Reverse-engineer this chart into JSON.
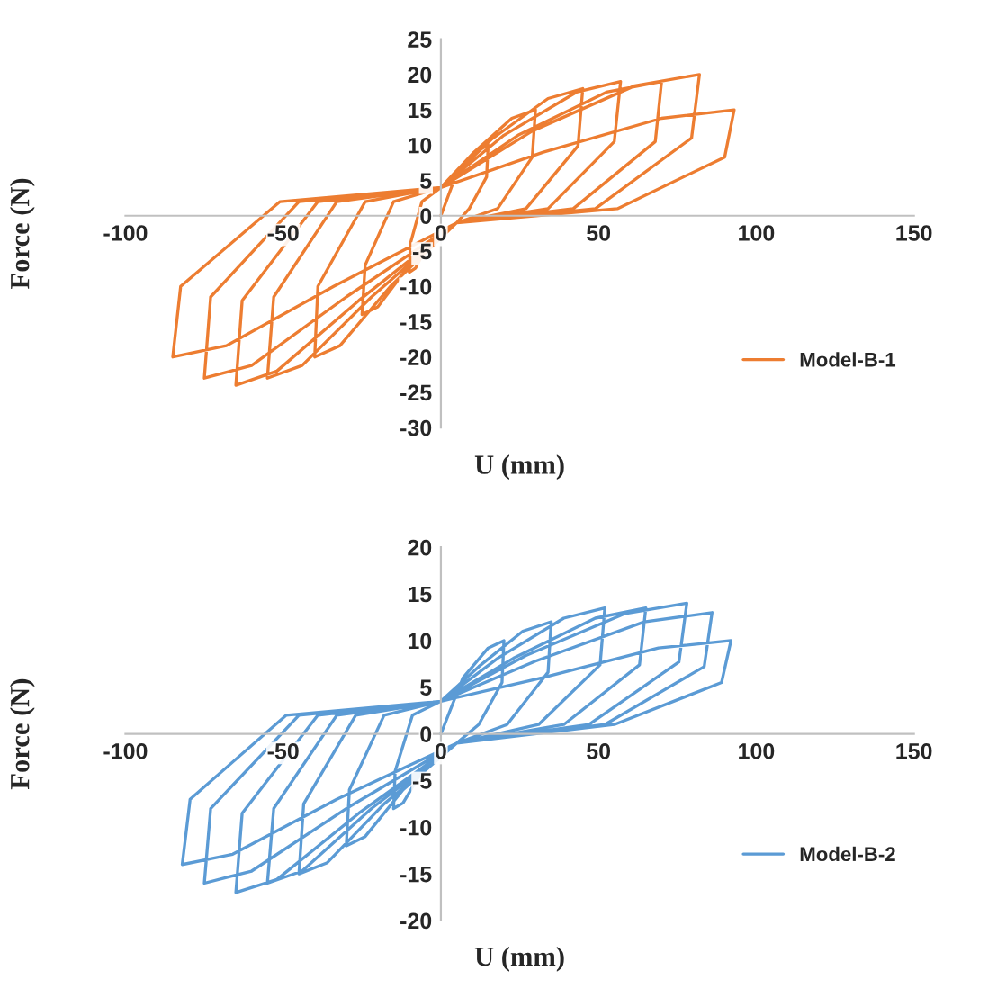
{
  "chart_data": [
    {
      "type": "line",
      "xlabel": "U (mm)",
      "ylabel": "Force (N)",
      "xlim": [
        -100,
        150
      ],
      "xticks": [
        -100,
        -50,
        0,
        50,
        100,
        150
      ],
      "ylim": [
        -30,
        25
      ],
      "yticks": [
        -30,
        -25,
        -20,
        -15,
        -10,
        -5,
        0,
        5,
        10,
        15,
        20,
        25
      ],
      "grid": false,
      "legend": "bottom right",
      "marker": "none",
      "line_style": "solid",
      "series": [
        {
          "name": "Model-B-1",
          "color": "#ed7d31",
          "x": [
            0,
            5,
            11,
            15,
            14.5,
            9,
            5,
            -4,
            -8,
            -10,
            -9.7,
            -6,
            0,
            10.5,
            22.5,
            30,
            29,
            18,
            5,
            -10,
            -20,
            -25,
            -24,
            -15,
            0,
            16,
            34,
            45,
            43.5,
            27,
            5,
            -16,
            -32,
            -40,
            -39,
            -24,
            0,
            20,
            43,
            57,
            55,
            34,
            5,
            -22,
            -44,
            -55,
            -53,
            -33,
            0,
            24.5,
            52.5,
            70,
            68,
            42,
            5,
            -26,
            -52,
            -65,
            -63,
            -39,
            0,
            29,
            61.5,
            82,
            79.5,
            49,
            5,
            -30,
            -60,
            -75,
            -73,
            -45,
            0,
            32.5,
            70,
            93,
            90,
            56,
            5,
            -34,
            -68,
            -85,
            -82.5,
            -51,
            0
          ],
          "values": [
            0,
            6,
            9,
            10,
            5.5,
            1,
            -1,
            -4,
            -7.4,
            -8,
            -4,
            2,
            4,
            9,
            13.8,
            15,
            8.3,
            1,
            -1,
            -7,
            -12.9,
            -14,
            -7,
            2,
            4,
            10.8,
            16.6,
            18,
            9.9,
            1,
            -1,
            -10,
            -18.4,
            -20,
            -10,
            2,
            4,
            11.4,
            17.5,
            19,
            10.5,
            1,
            -1,
            -11.5,
            -21.2,
            -23,
            -11.5,
            2,
            4,
            11.4,
            17.5,
            19,
            10.5,
            1,
            -1,
            -12,
            -22,
            -24,
            -12,
            2,
            4,
            12,
            18.4,
            20,
            11,
            1,
            -1,
            -11.5,
            -21.2,
            -23,
            -11.5,
            2,
            4,
            9,
            13.8,
            15,
            8.3,
            1,
            -1,
            -10,
            -18.4,
            -20,
            -10,
            2,
            4
          ]
        }
      ]
    },
    {
      "type": "line",
      "xlabel": "U (mm)",
      "ylabel": "Force (N)",
      "xlim": [
        -100,
        150
      ],
      "xticks": [
        -100,
        -50,
        0,
        50,
        100,
        150
      ],
      "ylim": [
        -20,
        20
      ],
      "yticks": [
        -20,
        -15,
        -10,
        -5,
        0,
        5,
        10,
        15,
        20
      ],
      "grid": false,
      "legend": "bottom right",
      "marker": "none",
      "line_style": "solid",
      "series": [
        {
          "name": "Model-B-2",
          "color": "#5b9bd5",
          "x": [
            0,
            7,
            15,
            20,
            19.4,
            12,
            5,
            -6,
            -12,
            -15,
            -14.5,
            -9,
            0,
            12,
            26,
            35,
            34,
            21,
            5,
            -12,
            -24,
            -30,
            -29,
            -18,
            0,
            18,
            39,
            52,
            50.5,
            31,
            5,
            -18,
            -36,
            -45,
            -43.5,
            -27,
            0,
            23,
            49,
            65,
            63,
            39,
            5,
            -22,
            -44,
            -55,
            -53,
            -33,
            0,
            27,
            58.5,
            78,
            75.5,
            47,
            5,
            -26,
            -52,
            -65,
            -63,
            -39,
            0,
            30,
            64.5,
            86,
            83.5,
            52,
            5,
            -30,
            -60,
            -75,
            -73,
            -45,
            0,
            32,
            69,
            92,
            89,
            55,
            5,
            -33,
            -66,
            -82,
            -79.5,
            -49,
            0
          ],
          "values": [
            0,
            6,
            9.2,
            10,
            5.5,
            1,
            -1,
            -4,
            -7.4,
            -8,
            -4,
            2,
            3.5,
            7.2,
            11,
            12,
            6.6,
            1,
            -1,
            -6,
            -11,
            -12,
            -6,
            2,
            3.5,
            8.1,
            12.4,
            13.5,
            7.4,
            1,
            -1,
            -7.5,
            -13.8,
            -15,
            -7.5,
            2,
            3.5,
            8.1,
            12.4,
            13.5,
            7.4,
            1,
            -1,
            -8,
            -14.7,
            -16,
            -8,
            2,
            3.5,
            8.4,
            12.9,
            14,
            7.7,
            1,
            -1,
            -8.5,
            -15.6,
            -17,
            -8.5,
            2,
            3.5,
            7.8,
            12,
            13,
            7.2,
            1,
            -1,
            -8,
            -14.7,
            -16,
            -8,
            2,
            3.5,
            6,
            9.2,
            10,
            5.5,
            1,
            -1,
            -7,
            -12.9,
            -14,
            -7,
            2,
            3.5
          ]
        }
      ]
    }
  ]
}
